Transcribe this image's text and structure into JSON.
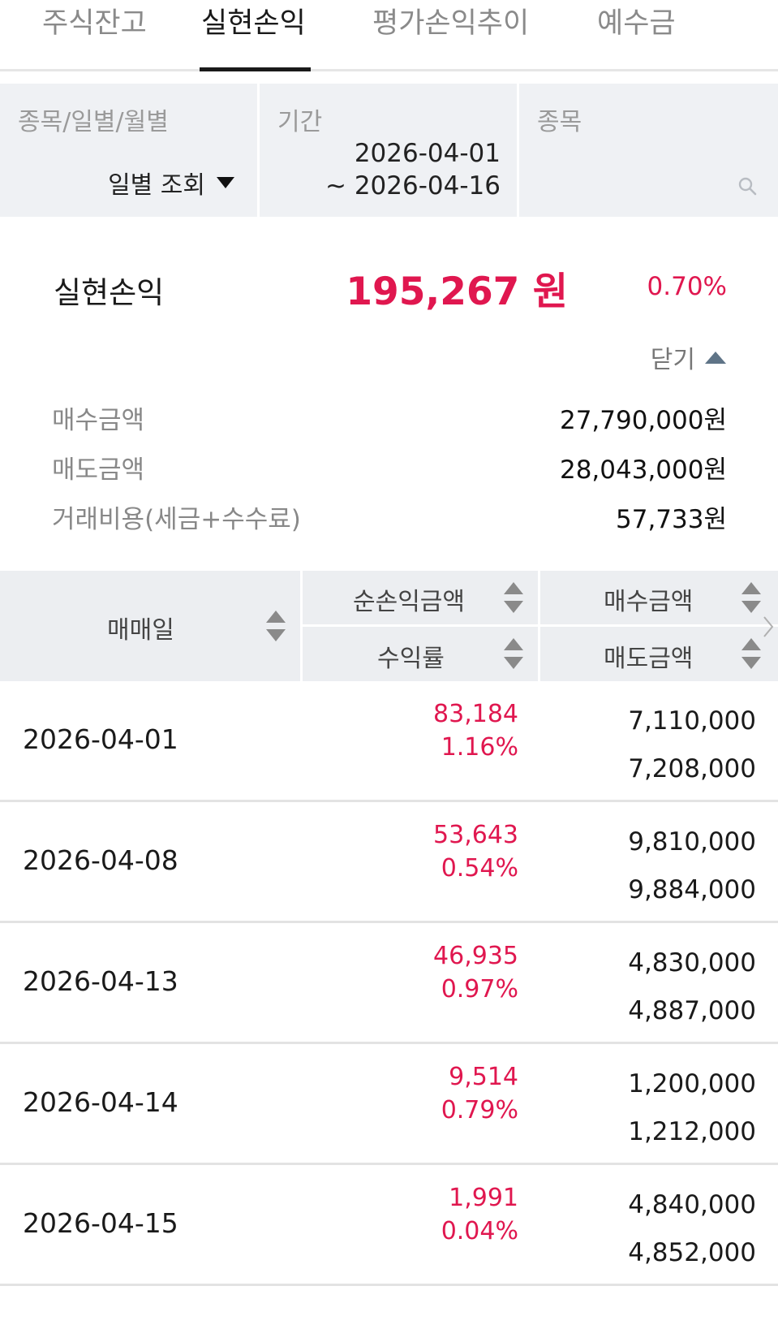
{
  "tabs": [
    {
      "label": "주식잔고"
    },
    {
      "label": "실현손익"
    },
    {
      "label": "평가손익추이"
    },
    {
      "label": "예수금"
    }
  ],
  "filter": {
    "type_label": "종목/일별/월별",
    "type_value": "일별 조회",
    "period_label": "기간",
    "period_start": "2026-04-01",
    "period_end": "~ 2026-04-16",
    "stock_label": "종목"
  },
  "summary": {
    "title": "실현손익",
    "amount": "195,267 원",
    "rate": "0.70%",
    "toggle_label": "닫기",
    "buy_label": "매수금액",
    "buy_value": "27,790,000원",
    "sell_label": "매도금액",
    "sell_value": "28,043,000원",
    "cost_label": "거래비용(세금+수수료)",
    "cost_value": "57,733원"
  },
  "table": {
    "headers": {
      "date": "매매일",
      "net_pl": "순손익금액",
      "rate": "수익률",
      "buy": "매수금액",
      "sell": "매도금액"
    },
    "rows": [
      {
        "date": "2026-04-01",
        "net_pl": "83,184",
        "rate": "1.16%",
        "buy": "7,110,000",
        "sell": "7,208,000"
      },
      {
        "date": "2026-04-08",
        "net_pl": "53,643",
        "rate": "0.54%",
        "buy": "9,810,000",
        "sell": "9,884,000"
      },
      {
        "date": "2026-04-13",
        "net_pl": "46,935",
        "rate": "0.97%",
        "buy": "4,830,000",
        "sell": "4,887,000"
      },
      {
        "date": "2026-04-14",
        "net_pl": "9,514",
        "rate": "0.79%",
        "buy": "1,200,000",
        "sell": "1,212,000"
      },
      {
        "date": "2026-04-15",
        "net_pl": "1,991",
        "rate": "0.04%",
        "buy": "4,840,000",
        "sell": "4,852,000"
      }
    ]
  },
  "colors": {
    "profit": "#e0174f",
    "header_bg": "#eceef1",
    "filter_bg": "#eff1f4",
    "sort_arrow": "#8a8a8a",
    "toggle_arrow": "#5f7487"
  }
}
